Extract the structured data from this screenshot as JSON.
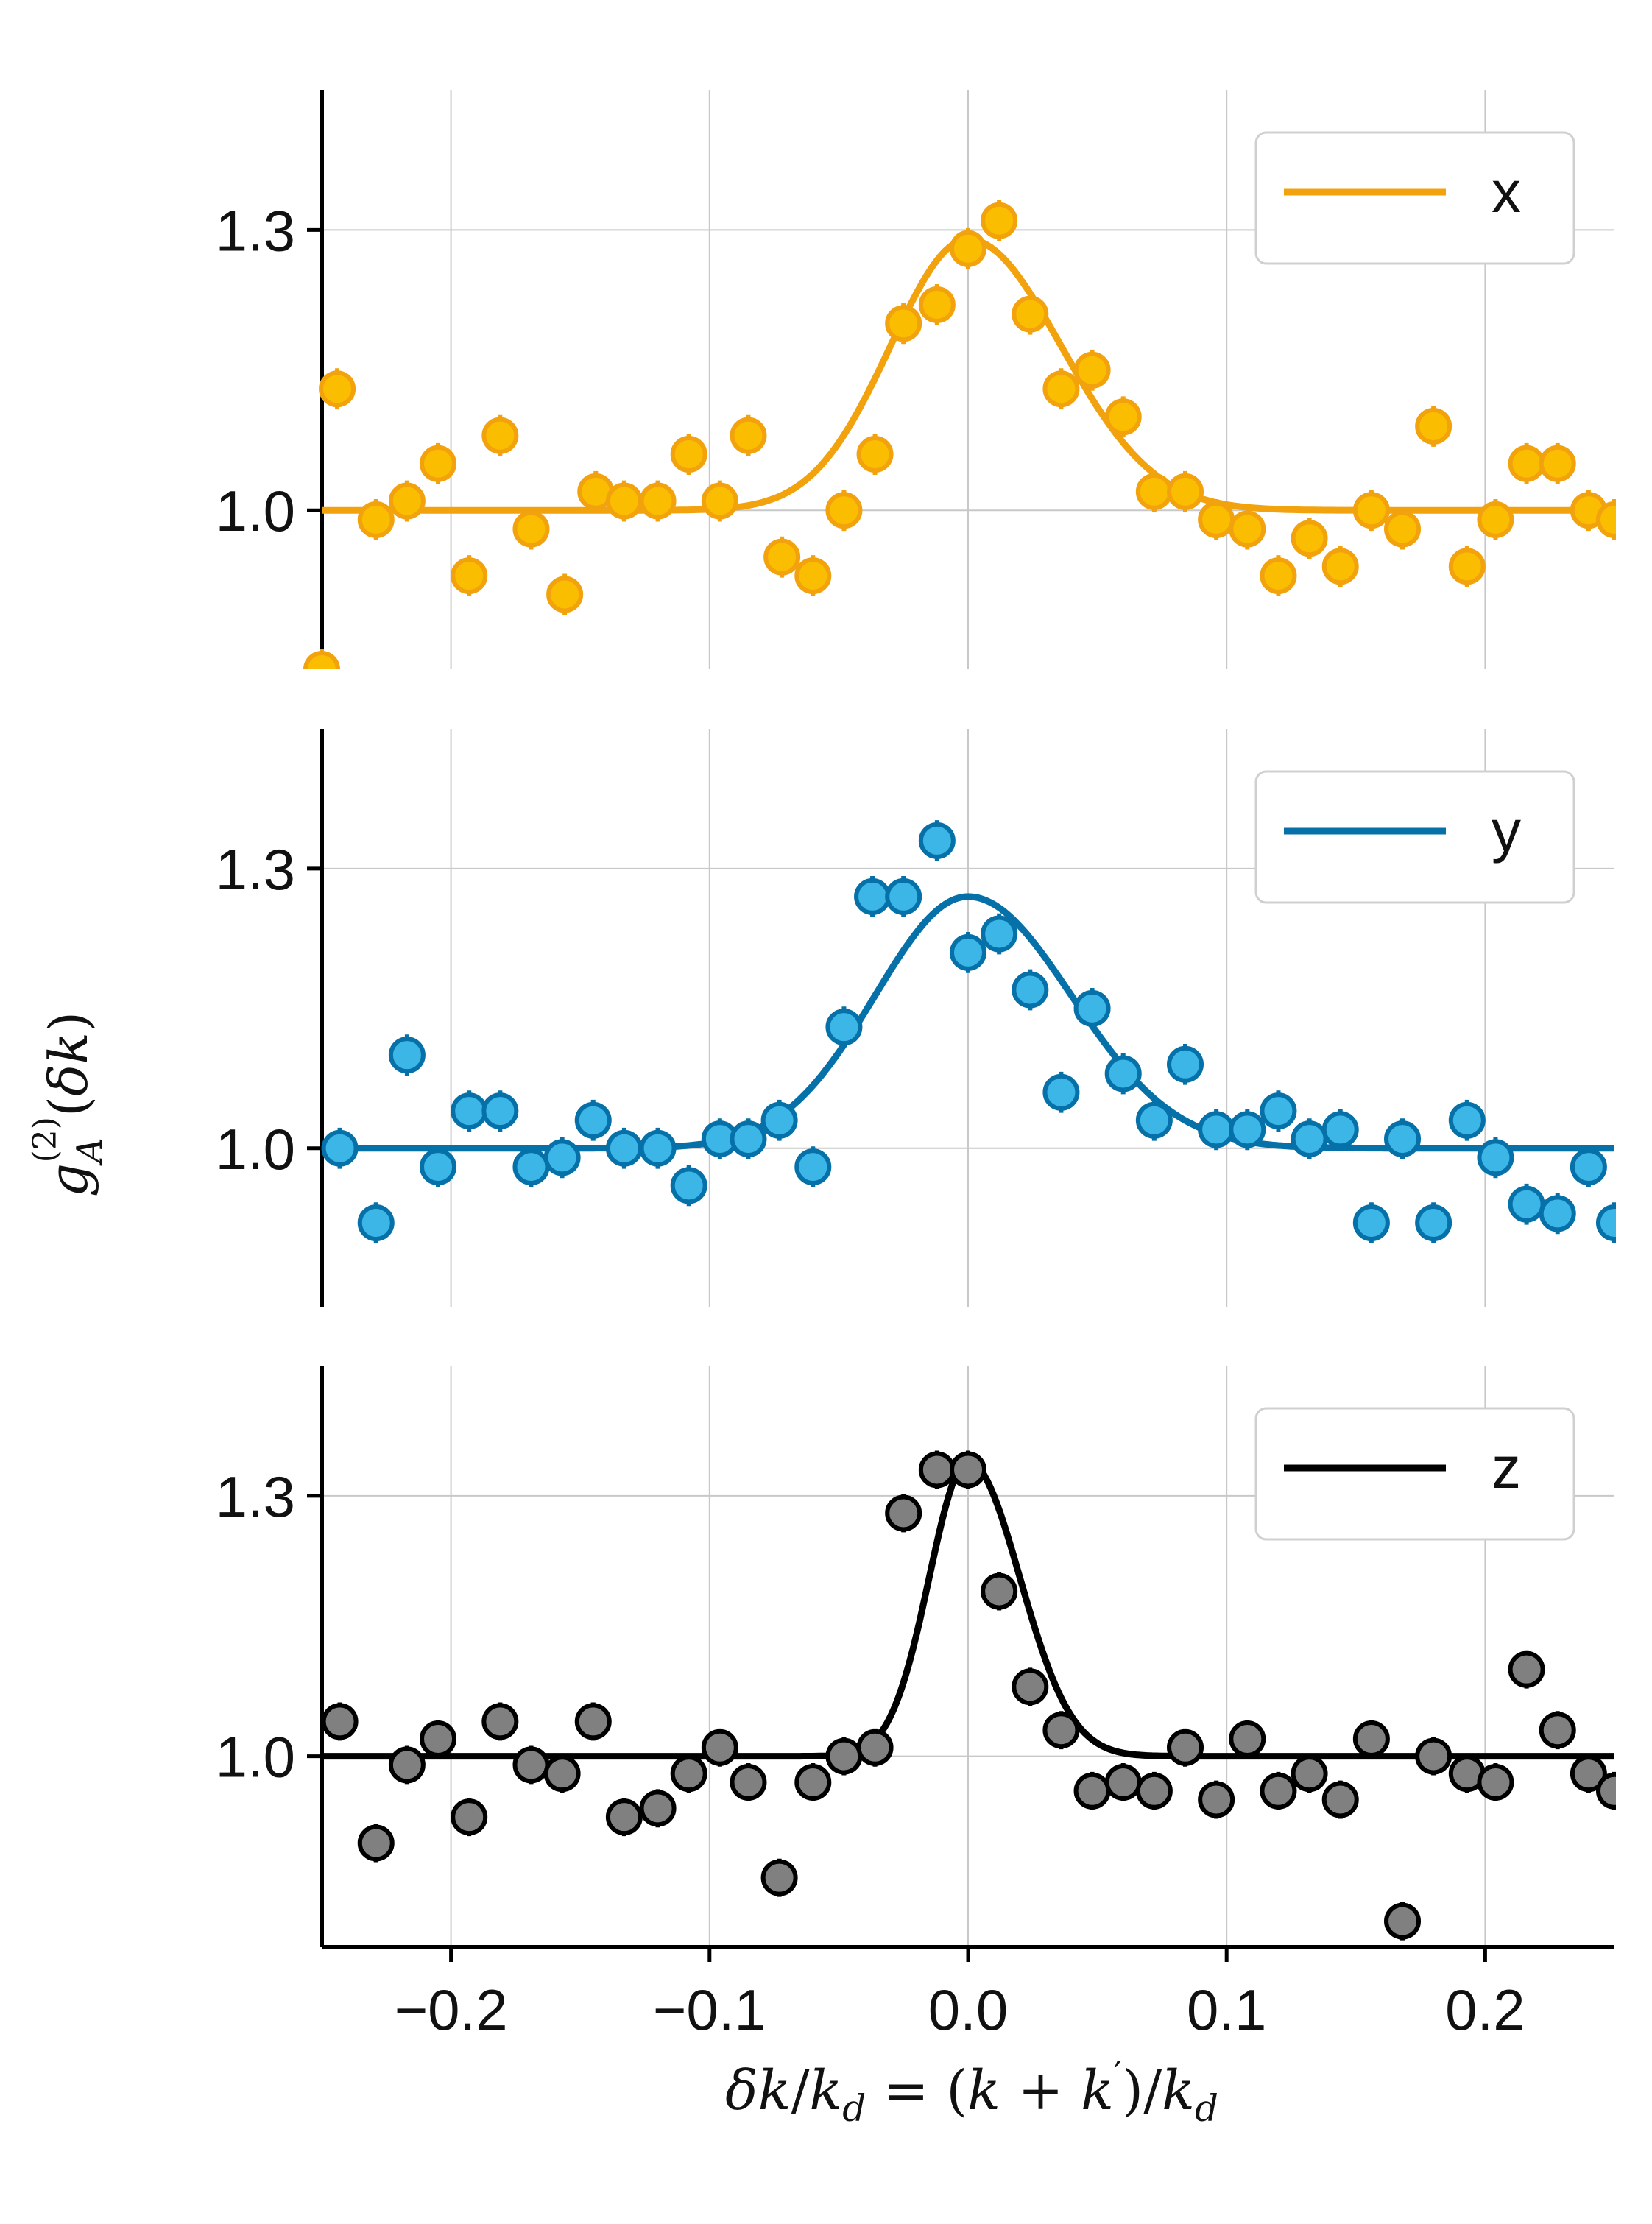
{
  "chart_data": [
    {
      "type": "scatter",
      "legend": "x",
      "colors": {
        "line": "#f2a20c",
        "marker": "#fbbd00",
        "edge": "#f2a20c"
      },
      "xlim": [
        -0.25,
        0.25
      ],
      "ylim": [
        0.83,
        1.45
      ],
      "yticks": [
        1.0,
        1.3
      ],
      "ytick_labels": [
        "1.0",
        "1.3"
      ],
      "grid": true,
      "legend_position": "top-right",
      "points": [
        [
          -0.25,
          0.83
        ],
        [
          -0.244,
          1.13
        ],
        [
          -0.229,
          0.99
        ],
        [
          -0.217,
          1.01
        ],
        [
          -0.205,
          1.05
        ],
        [
          -0.193,
          0.93
        ],
        [
          -0.181,
          1.08
        ],
        [
          -0.169,
          0.98
        ],
        [
          -0.156,
          0.91
        ],
        [
          -0.144,
          1.02
        ],
        [
          -0.133,
          1.01
        ],
        [
          -0.12,
          1.01
        ],
        [
          -0.108,
          1.06
        ],
        [
          -0.096,
          1.01
        ],
        [
          -0.085,
          1.08
        ],
        [
          -0.072,
          0.95
        ],
        [
          -0.06,
          0.93
        ],
        [
          -0.048,
          1.0
        ],
        [
          -0.036,
          1.06
        ],
        [
          -0.025,
          1.2
        ],
        [
          -0.012,
          1.22
        ],
        [
          0.0,
          1.28
        ],
        [
          0.012,
          1.31
        ],
        [
          0.024,
          1.21
        ],
        [
          0.036,
          1.13
        ],
        [
          0.048,
          1.15
        ],
        [
          0.06,
          1.1
        ],
        [
          0.072,
          1.02
        ],
        [
          0.084,
          1.02
        ],
        [
          0.096,
          0.99
        ],
        [
          0.108,
          0.98
        ],
        [
          0.12,
          0.93
        ],
        [
          0.132,
          0.97
        ],
        [
          0.144,
          0.94
        ],
        [
          0.156,
          1.0
        ],
        [
          0.168,
          0.98
        ],
        [
          0.18,
          1.09
        ],
        [
          0.193,
          0.94
        ],
        [
          0.204,
          0.99
        ],
        [
          0.216,
          1.05
        ],
        [
          0.228,
          1.05
        ],
        [
          0.24,
          1.0
        ],
        [
          0.25,
          0.99
        ]
      ],
      "fit": {
        "baseline": 1.0,
        "amplitude": 0.29,
        "center": 0.0,
        "sigma_left": 0.03,
        "sigma_right": 0.036
      }
    },
    {
      "type": "scatter",
      "legend": "y",
      "colors": {
        "line": "#0571a8",
        "marker": "#3cb6e6",
        "edge": "#0571a8"
      },
      "xlim": [
        -0.25,
        0.25
      ],
      "ylim": [
        0.83,
        1.45
      ],
      "yticks": [
        1.0,
        1.3
      ],
      "ytick_labels": [
        "1.0",
        "1.3"
      ],
      "grid": true,
      "legend_position": "top-right",
      "points": [
        [
          -0.243,
          1.0
        ],
        [
          -0.229,
          0.92
        ],
        [
          -0.217,
          1.1
        ],
        [
          -0.205,
          0.98
        ],
        [
          -0.193,
          1.04
        ],
        [
          -0.181,
          1.04
        ],
        [
          -0.169,
          0.98
        ],
        [
          -0.157,
          0.99
        ],
        [
          -0.145,
          1.03
        ],
        [
          -0.133,
          1.0
        ],
        [
          -0.12,
          1.0
        ],
        [
          -0.108,
          0.96
        ],
        [
          -0.096,
          1.01
        ],
        [
          -0.085,
          1.01
        ],
        [
          -0.073,
          1.03
        ],
        [
          -0.06,
          0.98
        ],
        [
          -0.048,
          1.13
        ],
        [
          -0.037,
          1.27
        ],
        [
          -0.025,
          1.27
        ],
        [
          -0.012,
          1.33
        ],
        [
          0.0,
          1.21
        ],
        [
          0.012,
          1.23
        ],
        [
          0.024,
          1.17
        ],
        [
          0.036,
          1.06
        ],
        [
          0.048,
          1.15
        ],
        [
          0.06,
          1.08
        ],
        [
          0.072,
          1.03
        ],
        [
          0.084,
          1.09
        ],
        [
          0.096,
          1.02
        ],
        [
          0.108,
          1.02
        ],
        [
          0.12,
          1.04
        ],
        [
          0.132,
          1.01
        ],
        [
          0.144,
          1.02
        ],
        [
          0.156,
          0.92
        ],
        [
          0.168,
          1.01
        ],
        [
          0.18,
          0.92
        ],
        [
          0.193,
          1.03
        ],
        [
          0.204,
          0.99
        ],
        [
          0.216,
          0.94
        ],
        [
          0.228,
          0.93
        ],
        [
          0.24,
          0.98
        ],
        [
          0.25,
          0.92
        ]
      ],
      "fit": {
        "baseline": 1.0,
        "amplitude": 0.27,
        "center": 0.0,
        "sigma_left": 0.036,
        "sigma_right": 0.04
      }
    },
    {
      "type": "scatter",
      "legend": "z",
      "colors": {
        "line": "#000000",
        "marker": "#808080",
        "edge": "#000000"
      },
      "xlim": [
        -0.25,
        0.25
      ],
      "ylim": [
        0.78,
        1.45
      ],
      "yticks": [
        1.0,
        1.3
      ],
      "ytick_labels": [
        "1.0",
        "1.3"
      ],
      "grid": true,
      "legend_position": "top-right",
      "xticks": [
        -0.2,
        -0.1,
        0.0,
        0.1,
        0.2
      ],
      "xtick_labels": [
        "−0.2",
        "−0.1",
        "0.0",
        "0.1",
        "0.2"
      ],
      "points": [
        [
          -0.243,
          1.04
        ],
        [
          -0.229,
          0.9
        ],
        [
          -0.217,
          0.99
        ],
        [
          -0.205,
          1.02
        ],
        [
          -0.193,
          0.93
        ],
        [
          -0.181,
          1.04
        ],
        [
          -0.169,
          0.99
        ],
        [
          -0.157,
          0.98
        ],
        [
          -0.145,
          1.04
        ],
        [
          -0.133,
          0.93
        ],
        [
          -0.12,
          0.94
        ],
        [
          -0.108,
          0.98
        ],
        [
          -0.096,
          1.01
        ],
        [
          -0.085,
          0.97
        ],
        [
          -0.073,
          0.86
        ],
        [
          -0.06,
          0.97
        ],
        [
          -0.048,
          1.0
        ],
        [
          -0.036,
          1.01
        ],
        [
          -0.025,
          1.28
        ],
        [
          -0.012,
          1.33
        ],
        [
          0.0,
          1.33
        ],
        [
          0.012,
          1.19
        ],
        [
          0.024,
          1.08
        ],
        [
          0.036,
          1.03
        ],
        [
          0.048,
          0.96
        ],
        [
          0.06,
          0.97
        ],
        [
          0.072,
          0.96
        ],
        [
          0.084,
          1.01
        ],
        [
          0.096,
          0.95
        ],
        [
          0.108,
          1.02
        ],
        [
          0.12,
          0.96
        ],
        [
          0.132,
          0.98
        ],
        [
          0.144,
          0.95
        ],
        [
          0.156,
          1.02
        ],
        [
          0.168,
          0.81
        ],
        [
          0.18,
          1.0
        ],
        [
          0.193,
          0.98
        ],
        [
          0.204,
          0.97
        ],
        [
          0.216,
          1.1
        ],
        [
          0.228,
          1.03
        ],
        [
          0.24,
          0.98
        ],
        [
          0.25,
          0.96
        ]
      ],
      "fit": {
        "baseline": 1.0,
        "amplitude": 0.34,
        "center": 0.0,
        "sigma_left": 0.015,
        "sigma_right": 0.02
      }
    }
  ],
  "error_bar": 0.022
}
